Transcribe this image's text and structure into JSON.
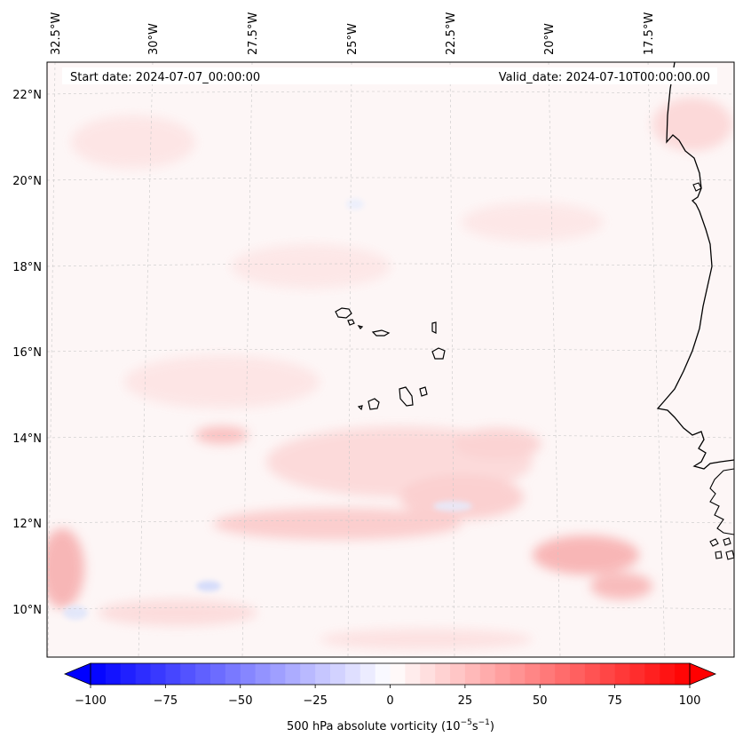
{
  "map": {
    "start_label": "Start date: 2024-07-07_00:00:00",
    "valid_label": "Valid_date: 2024-07-10T00:00:00.00",
    "lon_labels": [
      "32.5°W",
      "30°W",
      "27.5°W",
      "25°W",
      "22.5°W",
      "20°W",
      "17.5°W"
    ],
    "lat_labels": [
      "22°N",
      "20°N",
      "18°N",
      "16°N",
      "14°N",
      "12°N",
      "10°N"
    ],
    "colors": {
      "background": "#fdf6f6",
      "coast": "#000000",
      "grid": "#c8c8c8"
    }
  },
  "colorbar": {
    "label": "500 hPa absolute vorticity (10$^{-5}$s$^{-1}$)",
    "label_main": "500 hPa absolute vorticity (10",
    "label_exp1": "−5",
    "label_mid": "s",
    "label_exp2": "−1",
    "label_end": ")",
    "min": -100,
    "max": 100,
    "ticks": [
      "−100",
      "−75",
      "−50",
      "−25",
      "0",
      "25",
      "50",
      "75",
      "100"
    ],
    "tick_values": [
      -100,
      -75,
      -50,
      -25,
      0,
      25,
      50,
      75,
      100
    ],
    "levels": 40,
    "extend": "both",
    "cmap": "bwr"
  }
}
